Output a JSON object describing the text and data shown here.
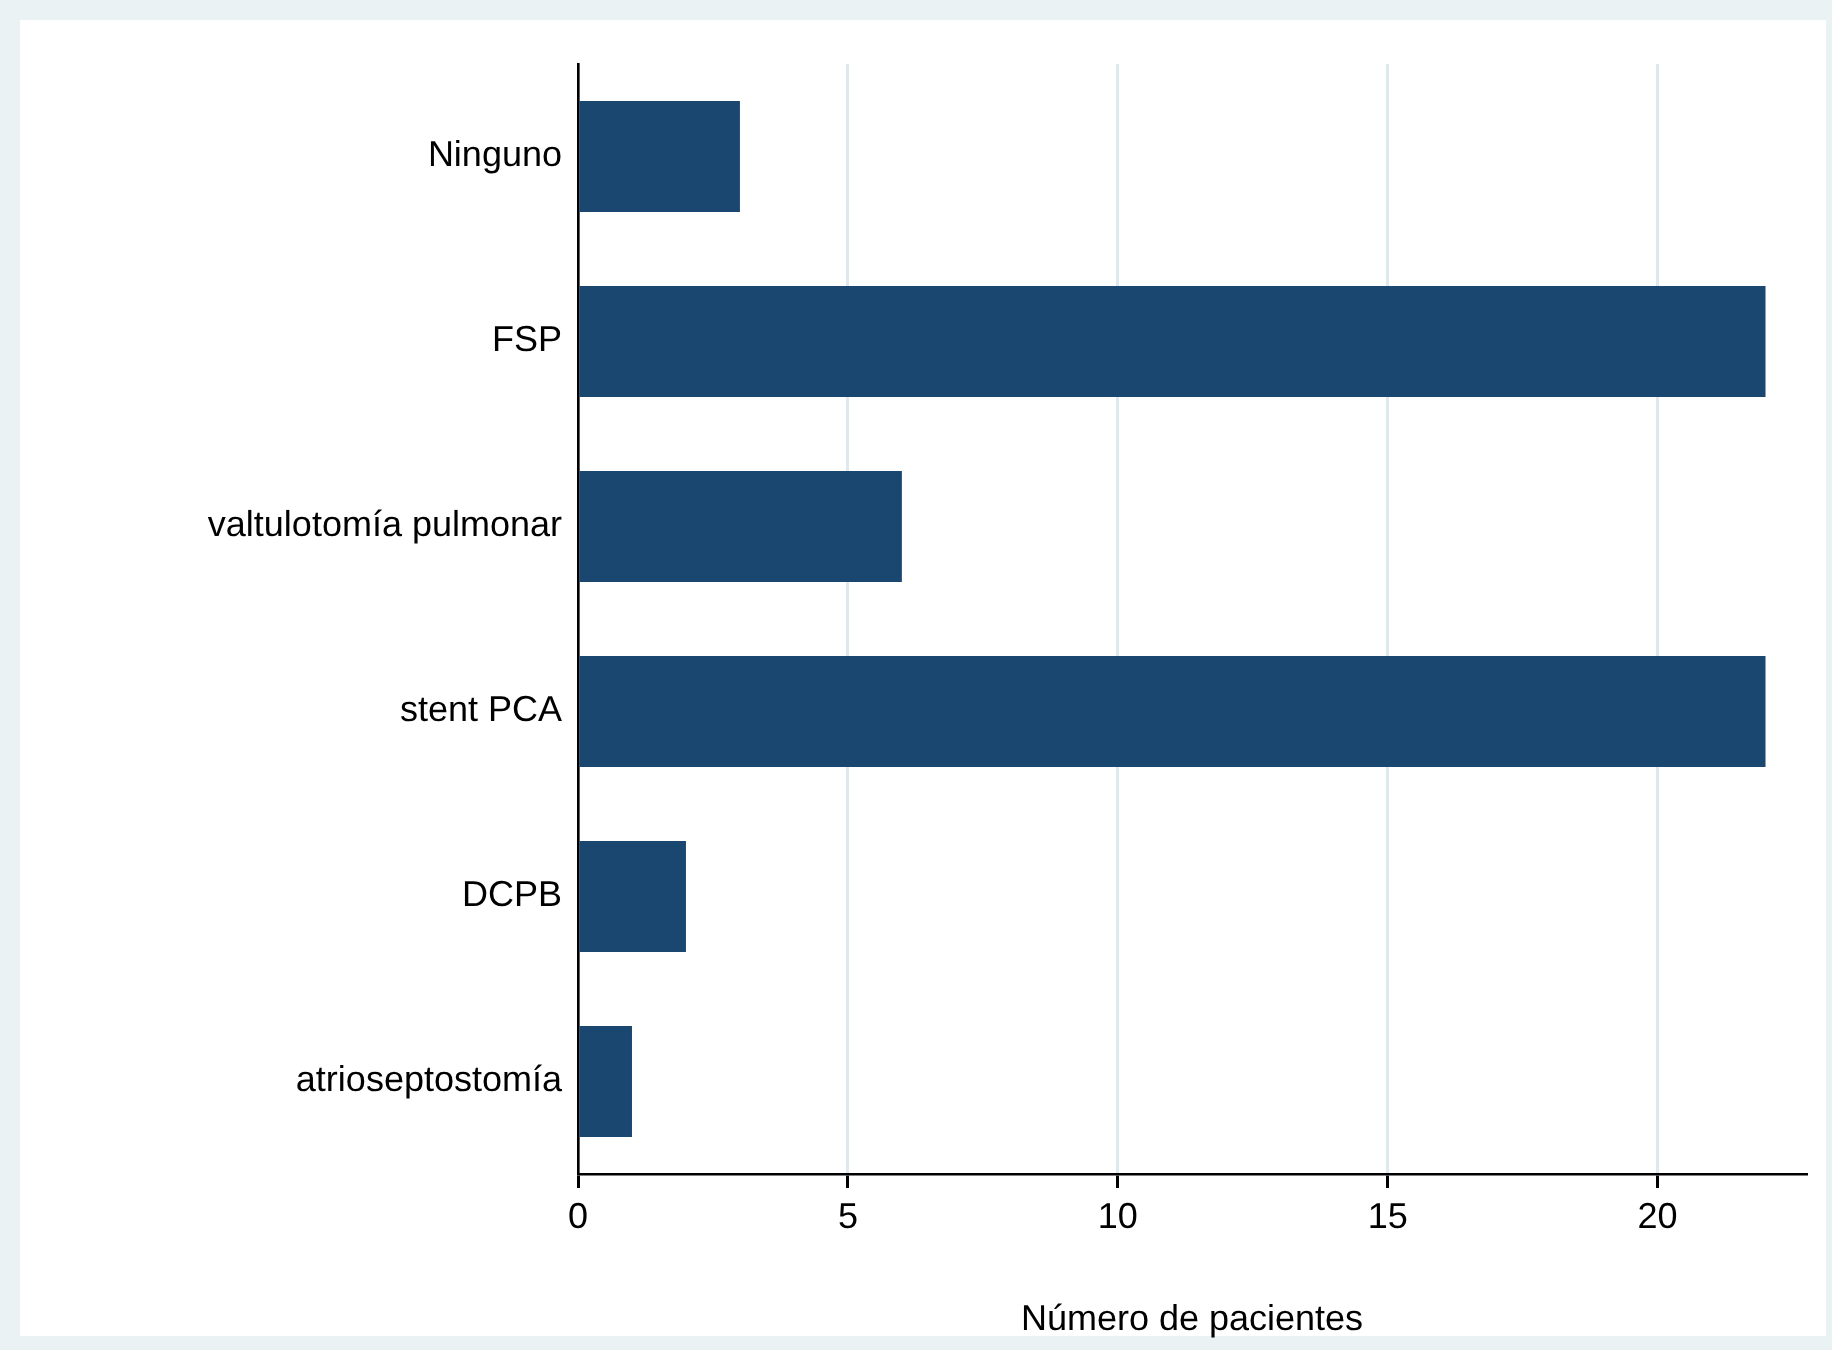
{
  "chart_data": {
    "type": "bar",
    "orientation": "horizontal",
    "xlabel": "Número de pacientes",
    "categories": [
      "Ninguno",
      "FSP",
      "valtulotomía pulmonar",
      "stent PCA",
      "DCPB",
      "atrioseptostomía"
    ],
    "values": [
      3,
      22,
      6,
      22,
      2,
      1
    ],
    "color": "#1a476f",
    "xlim": [
      0,
      22.75
    ],
    "xticks": [
      0,
      5,
      10,
      15,
      20
    ],
    "grid": "x",
    "legend": false
  }
}
